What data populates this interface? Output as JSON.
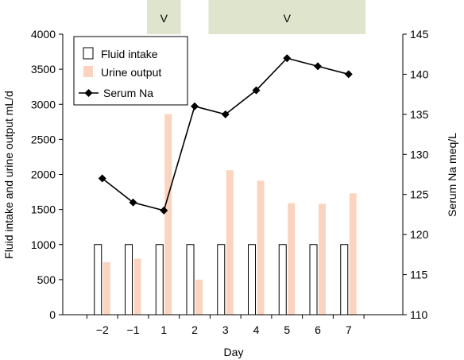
{
  "chart_data": {
    "type": "bar",
    "categories": [
      "−2",
      "−1",
      "1",
      "2",
      "3",
      "4",
      "5",
      "6",
      "7"
    ],
    "series": [
      {
        "name": "Fluid intake",
        "kind": "bar",
        "axis": "left",
        "values": [
          1000,
          1000,
          1000,
          1000,
          1000,
          1000,
          1000,
          1000,
          1000
        ]
      },
      {
        "name": "Urine output",
        "kind": "bar",
        "axis": "left",
        "values": [
          750,
          800,
          2860,
          500,
          2060,
          1910,
          1590,
          1580,
          1730
        ]
      },
      {
        "name": "Serum Na",
        "kind": "line",
        "axis": "right",
        "values": [
          127,
          124,
          123,
          136,
          135,
          138,
          142,
          141,
          140
        ]
      }
    ],
    "xlabel": "Day",
    "ylabel": "Fluid intake and urine output mL/d",
    "y2label": "Serum Na meq/L",
    "ylim": [
      0,
      4000
    ],
    "y2lim": [
      110,
      145
    ],
    "yticks": [
      0,
      500,
      1000,
      1500,
      2000,
      2500,
      3000,
      3500,
      4000
    ],
    "y2ticks": [
      110,
      115,
      120,
      125,
      130,
      135,
      140,
      145
    ],
    "annotations": [
      {
        "text": "V",
        "from": "1",
        "to": "1"
      },
      {
        "text": "V",
        "from": "3",
        "to": "7"
      }
    ],
    "legend": "top-left",
    "grid": false,
    "colors": {
      "intake_fill": "#ffffff",
      "intake_edge": "#000000",
      "output_fill": "#fad4bf",
      "line": "#000000",
      "band": "#dfe5cc"
    }
  }
}
